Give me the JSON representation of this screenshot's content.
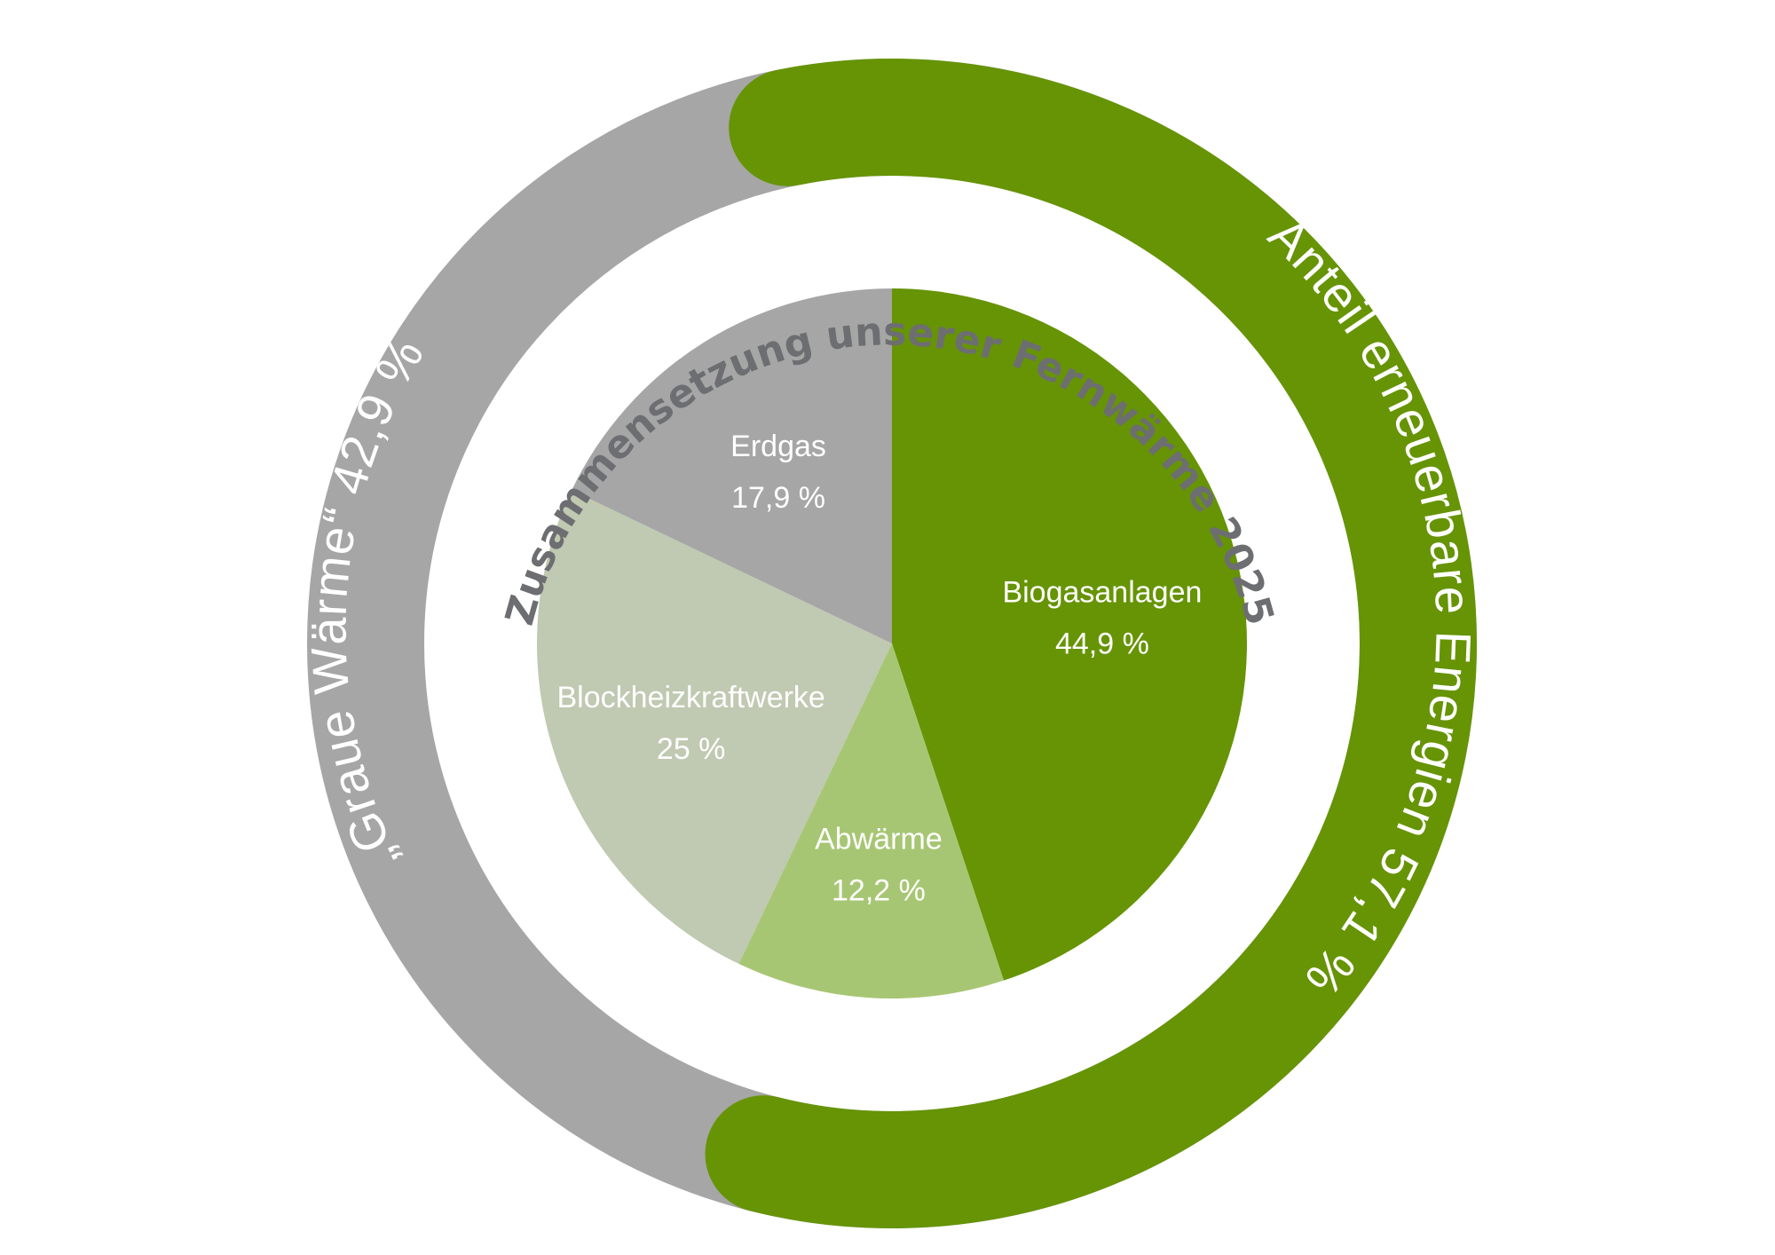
{
  "chart_data": {
    "type": "pie",
    "title": "Zusammensetzung unserer Fernwärme 2025",
    "slices": [
      {
        "label": "Biogasanlagen",
        "value": 44.9,
        "value_label": "44,9 %",
        "color": "#669405"
      },
      {
        "label": "Abwärme",
        "value": 12.2,
        "value_label": "12,2 %",
        "color": "#a7c674"
      },
      {
        "label": "Blockheizkraftwerke",
        "value": 25,
        "value_label": "25 %",
        "color": "#c0c9b1"
      },
      {
        "label": "Erdgas",
        "value": 17.9,
        "value_label": "17,9 %",
        "color": "#a6a6a6"
      }
    ],
    "outer_ring": [
      {
        "label": "Anteil erneuerbare Energien 57,1 %",
        "value": 57.1,
        "color": "#669405"
      },
      {
        "label": "„Graue Wärme“ 42,9 %",
        "value": 42.9,
        "color": "#a6a6a6"
      }
    ]
  }
}
